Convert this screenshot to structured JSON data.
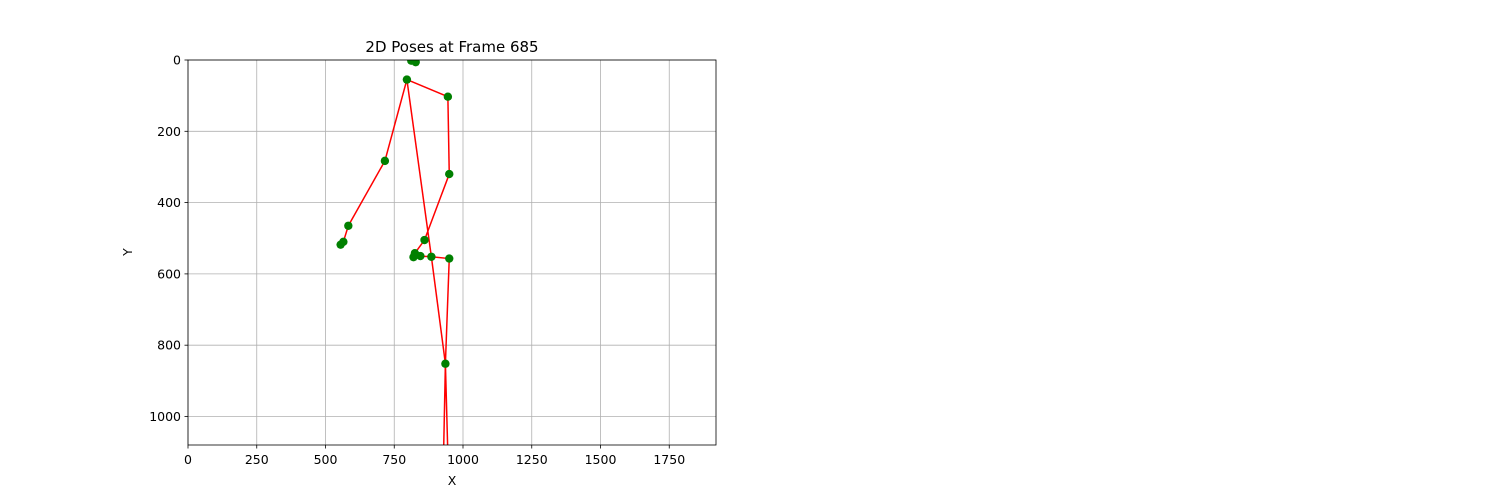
{
  "chart_data": {
    "type": "scatter",
    "title": "2D Poses at Frame 685",
    "xlabel": "X",
    "ylabel": "Y",
    "xlim": [
      0,
      1920
    ],
    "ylim": [
      1080,
      0
    ],
    "y_inverted": true,
    "grid": true,
    "xticks": [
      0,
      250,
      500,
      750,
      1000,
      1250,
      1500,
      1750
    ],
    "yticks": [
      0,
      200,
      400,
      600,
      800,
      1000
    ],
    "point_color": "#008000",
    "line_color": "#ff0000",
    "keypoints": [
      {
        "x": 812,
        "y": 2
      },
      {
        "x": 828,
        "y": 6
      },
      {
        "x": 796,
        "y": 55
      },
      {
        "x": 945,
        "y": 103
      },
      {
        "x": 716,
        "y": 283
      },
      {
        "x": 950,
        "y": 320
      },
      {
        "x": 583,
        "y": 465
      },
      {
        "x": 860,
        "y": 505
      },
      {
        "x": 565,
        "y": 510
      },
      {
        "x": 555,
        "y": 518
      },
      {
        "x": 825,
        "y": 542
      },
      {
        "x": 845,
        "y": 550
      },
      {
        "x": 885,
        "y": 552
      },
      {
        "x": 820,
        "y": 553
      },
      {
        "x": 950,
        "y": 557
      },
      {
        "x": 936,
        "y": 852
      }
    ],
    "limbs": [
      [
        [
          796,
          55
        ],
        [
          945,
          103
        ]
      ],
      [
        [
          945,
          103
        ],
        [
          950,
          320
        ]
      ],
      [
        [
          950,
          320
        ],
        [
          860,
          505
        ]
      ],
      [
        [
          860,
          505
        ],
        [
          825,
          542
        ]
      ],
      [
        [
          796,
          55
        ],
        [
          716,
          283
        ]
      ],
      [
        [
          716,
          283
        ],
        [
          583,
          465
        ]
      ],
      [
        [
          583,
          465
        ],
        [
          565,
          510
        ]
      ],
      [
        [
          565,
          510
        ],
        [
          555,
          518
        ]
      ],
      [
        [
          796,
          55
        ],
        [
          885,
          552
        ]
      ],
      [
        [
          885,
          552
        ],
        [
          845,
          550
        ]
      ],
      [
        [
          885,
          552
        ],
        [
          950,
          557
        ]
      ],
      [
        [
          950,
          557
        ],
        [
          936,
          852
        ]
      ],
      [
        [
          885,
          552
        ],
        [
          936,
          852
        ]
      ],
      [
        [
          936,
          852
        ],
        [
          930,
          1080
        ]
      ],
      [
        [
          936,
          852
        ],
        [
          944,
          1080
        ]
      ]
    ]
  }
}
